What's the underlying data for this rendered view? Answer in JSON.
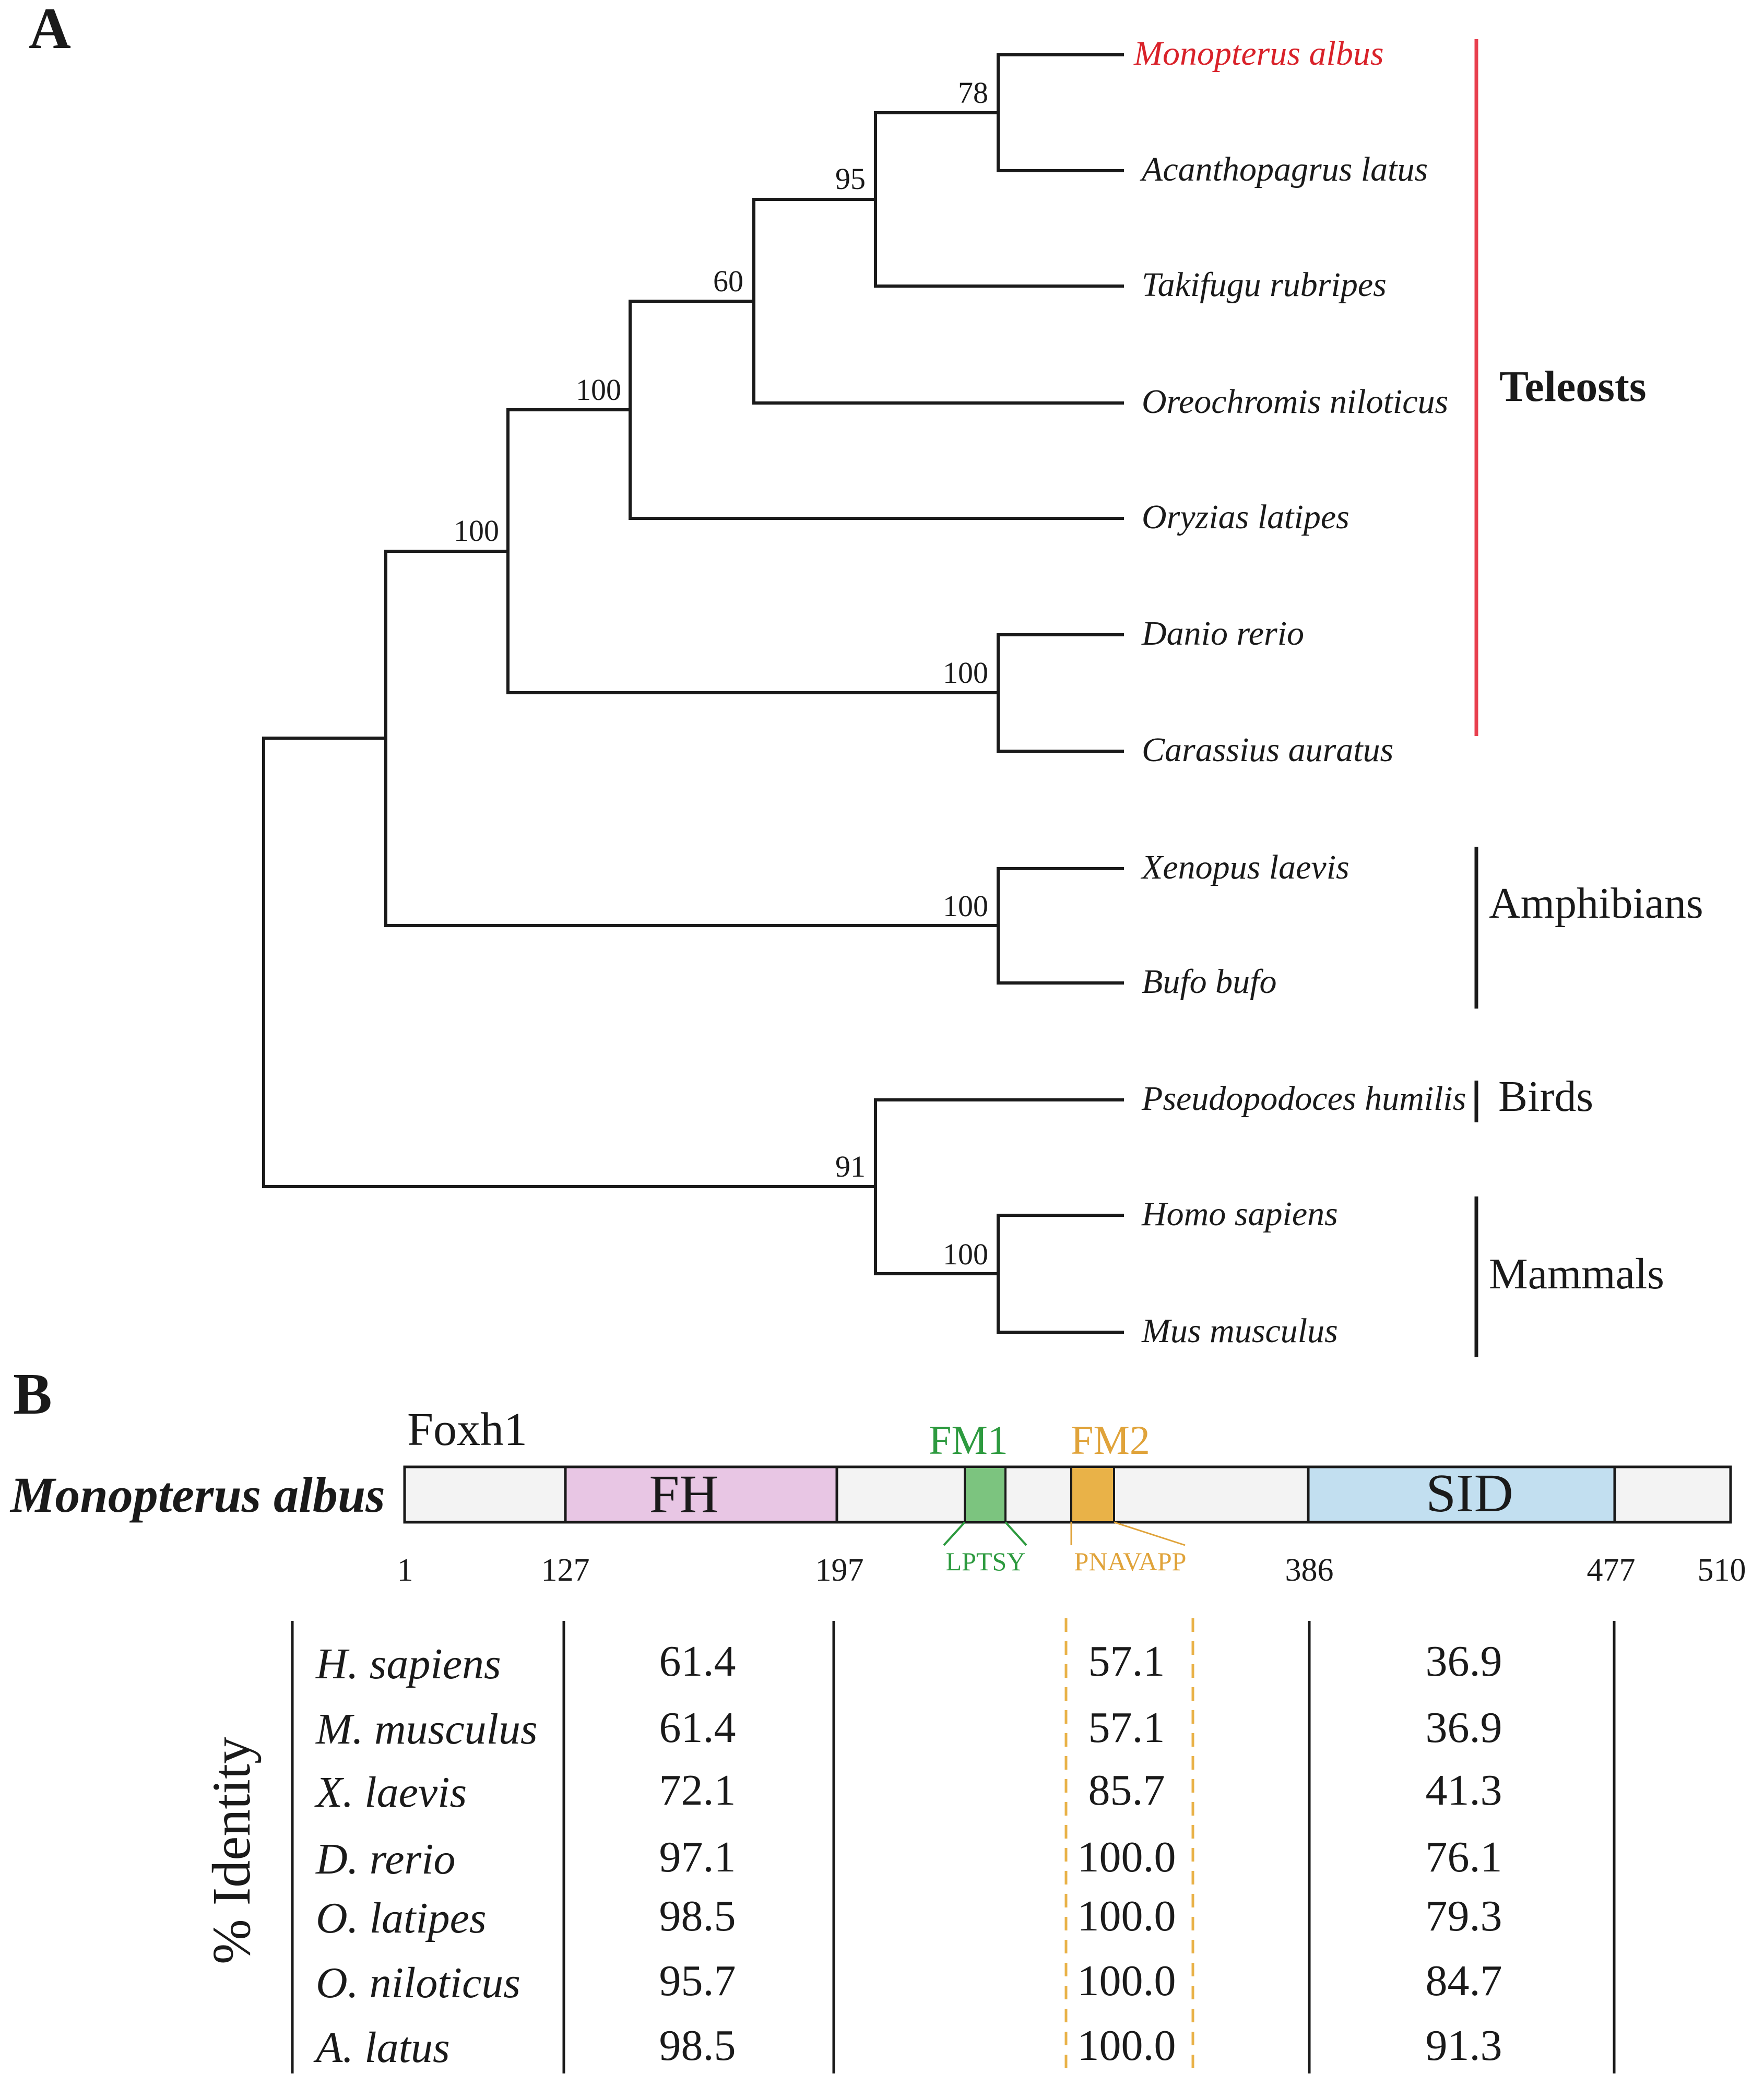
{
  "colors": {
    "line": "#1a1a1a",
    "highlight_species": "#d9222a",
    "teleost_bar": "#e8404f",
    "protein_bar_fill": "#f3f3f3",
    "fh": "#e8c6e4",
    "fm1": "#7cc47f",
    "fm1_text": "#2d9a3f",
    "fm2": "#e9b248",
    "fm2_text": "#e0a33a",
    "sid": "#c2dff0"
  },
  "panel_a": {
    "label": "A",
    "species": [
      "Monopterus albus",
      "Acanthopagrus latus",
      "Takifugu rubripes",
      "Oreochromis niloticus",
      "Oryzias latipes",
      "Danio rerio",
      "Carassius auratus",
      "Xenopus laevis",
      "Bufo bufo",
      "Pseudopodoces humilis",
      "Homo sapiens",
      "Mus musculus"
    ],
    "highlighted_species": "Monopterus albus",
    "bootstrap": {
      "ma_al": "78",
      "ma_tr": "95",
      "ma_on": "60",
      "ma_ol": "100",
      "teleosts": "100",
      "dr_ca": "100",
      "xl_bb": "100",
      "birds_mammals": "91",
      "hs_mm": "100"
    },
    "groups": {
      "teleosts": "Teleosts",
      "amphibians": "Amphibians",
      "birds": "Birds",
      "mammals": "Mammals"
    }
  },
  "panel_b": {
    "label": "B",
    "protein_name": "Foxh1",
    "species_name": "Monopterus albus",
    "length": 510,
    "domains": {
      "fh": {
        "label": "FH",
        "start": 127,
        "end": 197
      },
      "fm1": {
        "label": "FM1",
        "motif": "LPTSY"
      },
      "fm2": {
        "label": "FM2",
        "motif": "PNAVAPP"
      },
      "sid": {
        "label": "SID",
        "start": 386,
        "end": 477
      }
    },
    "positions": [
      "1",
      "127",
      "197",
      "386",
      "477",
      "510"
    ],
    "identity_axis_label": "% Identity",
    "identity_table": [
      {
        "species": "H. sapiens",
        "fh": "61.4",
        "fm2": "57.1",
        "sid": "36.9"
      },
      {
        "species": "M. musculus",
        "fh": "61.4",
        "fm2": "57.1",
        "sid": "36.9"
      },
      {
        "species": "X. laevis",
        "fh": "72.1",
        "fm2": "85.7",
        "sid": "41.3"
      },
      {
        "species": "D. rerio",
        "fh": "97.1",
        "fm2": "100.0",
        "sid": "76.1"
      },
      {
        "species": "O. latipes",
        "fh": "98.5",
        "fm2": "100.0",
        "sid": "79.3"
      },
      {
        "species": "O. niloticus",
        "fh": "95.7",
        "fm2": "100.0",
        "sid": "84.7"
      },
      {
        "species": "A. latus",
        "fh": "98.5",
        "fm2": "100.0",
        "sid": "91.3"
      }
    ]
  }
}
